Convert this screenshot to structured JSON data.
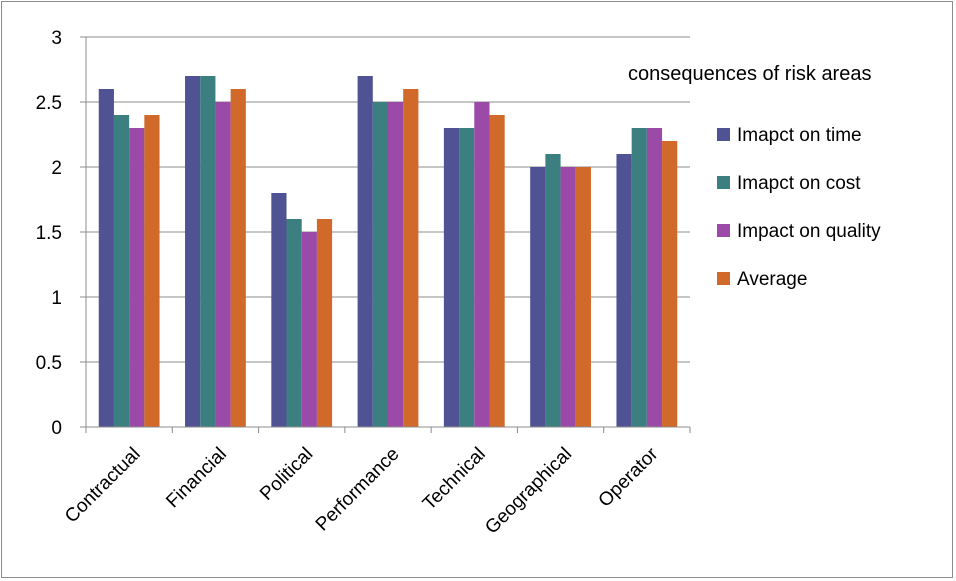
{
  "chart_data": {
    "type": "bar",
    "title": "",
    "xlabel": "",
    "ylabel": "",
    "categories": [
      "Contractual",
      "Financial",
      "Political",
      "Performance",
      "Technical",
      "Geographical",
      "Operator"
    ],
    "series": [
      {
        "name": "Imapct on time",
        "color": "#4f5394",
        "values": [
          2.6,
          2.7,
          1.8,
          2.7,
          2.3,
          2.0,
          2.1
        ]
      },
      {
        "name": "Imapct on cost",
        "color": "#3c7f80",
        "values": [
          2.4,
          2.7,
          1.6,
          2.5,
          2.3,
          2.1,
          2.3
        ]
      },
      {
        "name": "Impact on quality",
        "color": "#9b4aa8",
        "values": [
          2.3,
          2.5,
          1.5,
          2.5,
          2.5,
          2.0,
          2.3
        ]
      },
      {
        "name": "Average",
        "color": "#d0692a",
        "values": [
          2.4,
          2.6,
          1.6,
          2.6,
          2.4,
          2.0,
          2.2
        ]
      }
    ],
    "ylim": [
      0,
      3
    ],
    "yticks": [
      "0",
      "0.5",
      "1",
      "1.5",
      "2",
      "2.5",
      "3"
    ],
    "legend": {
      "title": "consequences of risk areas",
      "position": "right"
    },
    "grid": true
  }
}
